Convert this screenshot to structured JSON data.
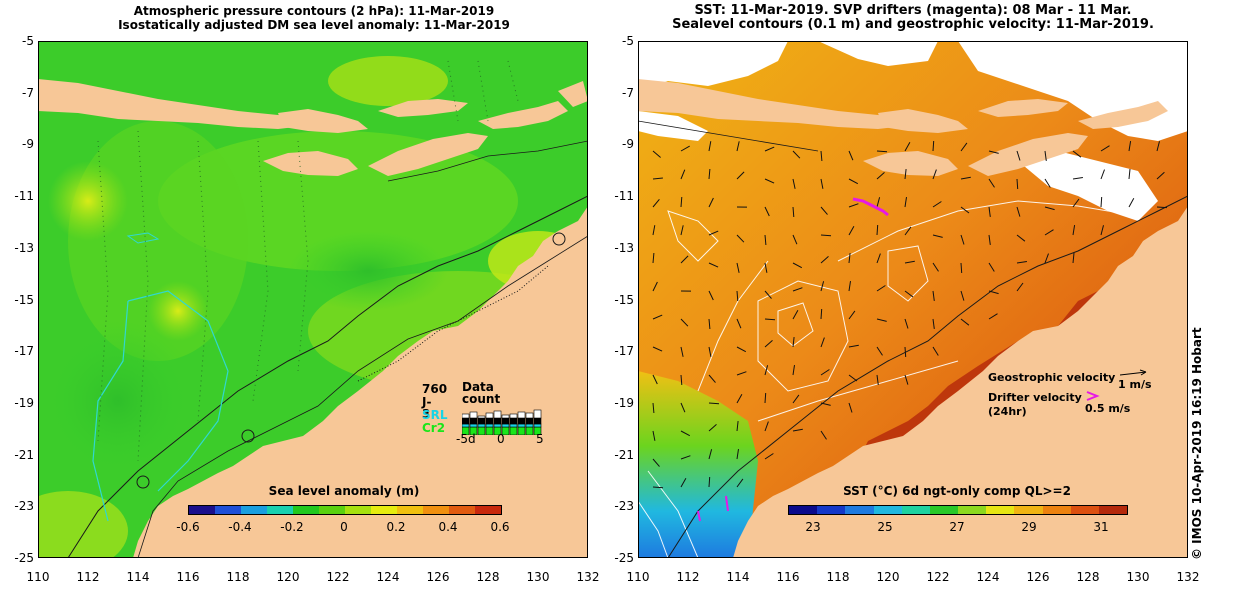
{
  "left_panel": {
    "title_line1": "Atmospheric pressure contours (2 hPa): 11-Mar-2019",
    "title_line2": "Isostatically adjusted DM sea level anomaly: 11-Mar-2019",
    "colorbar": {
      "label": "Sea level anomaly (m)",
      "ticks": [
        "-0.6",
        "-0.4",
        "-0.2",
        "0",
        "0.2",
        "0.4",
        "0.6"
      ],
      "colors": [
        "#1a0f8c",
        "#1e4fd8",
        "#1a9fe0",
        "#18d0b0",
        "#22c81e",
        "#5ad010",
        "#a6e010",
        "#e6ec10",
        "#f0c010",
        "#f09010",
        "#e05a10",
        "#c8280c"
      ]
    },
    "data_count": {
      "title": "Data count",
      "labels": [
        "760",
        "J-3",
        "SRL",
        "Cr2"
      ],
      "label_colors": [
        "#000000",
        "#000000",
        "#19d4e6",
        "#19e619"
      ],
      "axis_ticks": [
        "-5d",
        "0",
        "5"
      ]
    }
  },
  "right_panel": {
    "title_line1": "SST: 11-Mar-2019. SVP drifters (magenta): 08 Mar - 11 Mar.",
    "title_line2": "Sealevel contours (0.1 m) and geostrophic velocity: 11-Mar-2019.",
    "colorbar": {
      "label": "SST (°C) 6d ngt-only comp QL>=2",
      "ticks": [
        "23",
        "25",
        "27",
        "29",
        "31"
      ],
      "colors": [
        "#0a0a8c",
        "#1438c8",
        "#1e7ae0",
        "#20b8e0",
        "#1ed2a0",
        "#28c828",
        "#8cd81e",
        "#e6e614",
        "#f0b414",
        "#ec8210",
        "#dc5010",
        "#b4280a"
      ]
    },
    "legend": {
      "geostrophic": "Geostrophic velocity",
      "geostrophic_scale": "1 m/s",
      "drifter_line1": "Drifter velocity",
      "drifter_line2": "(24hr)",
      "drifter_scale": "0.5 m/s"
    }
  },
  "axes": {
    "y_ticks": [
      "-5",
      "-7",
      "-9",
      "-11",
      "-13",
      "-15",
      "-17",
      "-19",
      "-21",
      "-23",
      "-25"
    ],
    "x_ticks": [
      "110",
      "112",
      "114",
      "116",
      "118",
      "120",
      "122",
      "124",
      "126",
      "128",
      "130",
      "132"
    ]
  },
  "credit": "© IMOS 10-Apr-2019 16:19 Hobart",
  "colors": {
    "land": "#f7c797",
    "ocean_green": "#3cd12a",
    "sst_orange": "#e88a1c",
    "drifter": "#e619e6"
  }
}
